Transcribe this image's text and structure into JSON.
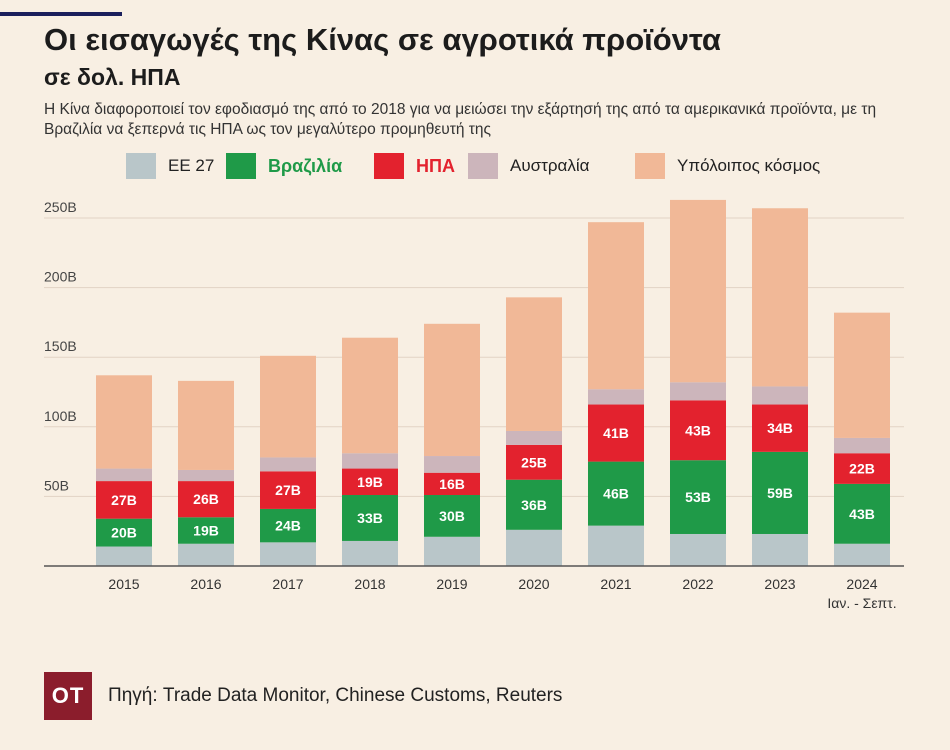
{
  "header": {
    "title": "Οι εισαγωγές της Κίνας σε αγροτικά προϊόντα",
    "subtitle": "σε δολ. ΗΠΑ",
    "description": "Η Κίνα διαφοροποιεί τον εφοδιασμό της από το 2018 για να μειώσει την εξάρτησή της από τα αμερικανικά προϊόντα, με τη Βραζιλία να ξεπερνά τις ΗΠΑ ως τον μεγαλύτερο προμηθευτή της"
  },
  "legend": {
    "items": [
      {
        "label": "ΕΕ 27",
        "color": "#b9c6c9",
        "label_color": "#222222",
        "bold": false
      },
      {
        "label": "Βραζιλία",
        "color": "#1f9a48",
        "label_color": "#1f9a48",
        "bold": true
      },
      {
        "label": "ΗΠΑ",
        "color": "#e3222e",
        "label_color": "#e3222e",
        "bold": true
      },
      {
        "label": "Αυστραλία",
        "color": "#ccb5bb",
        "label_color": "#222222",
        "bold": false
      },
      {
        "label": "Υπόλοιπος κόσμος",
        "color": "#f1b897",
        "label_color": "#222222",
        "bold": false
      }
    ]
  },
  "chart_data": {
    "type": "bar",
    "stacked": true,
    "categories": [
      "2015",
      "2016",
      "2017",
      "2018",
      "2019",
      "2020",
      "2021",
      "2022",
      "2023",
      "2024"
    ],
    "category_notes": {
      "2024": "Ιαν. - Σεπτ."
    },
    "y_ticks": [
      "50B",
      "100B",
      "150B",
      "200B",
      "250B"
    ],
    "ylim": [
      0,
      260
    ],
    "grid": true,
    "series": [
      {
        "name": "ΕΕ 27",
        "color": "#b9c6c9",
        "values": [
          14,
          16,
          17,
          18,
          21,
          26,
          29,
          23,
          23,
          16
        ],
        "labels": null
      },
      {
        "name": "Βραζιλία",
        "color": "#1f9a48",
        "values": [
          20,
          19,
          24,
          33,
          30,
          36,
          46,
          53,
          59,
          43
        ],
        "labels": [
          "20B",
          "19B",
          "24B",
          "33B",
          "30B",
          "36B",
          "46B",
          "53B",
          "59B",
          "43B"
        ]
      },
      {
        "name": "ΗΠΑ",
        "color": "#e3222e",
        "values": [
          27,
          26,
          27,
          19,
          16,
          25,
          41,
          43,
          34,
          22
        ],
        "labels": [
          "27B",
          "26B",
          "27B",
          "19B",
          "16B",
          "25B",
          "41B",
          "43B",
          "34B",
          "22B"
        ]
      },
      {
        "name": "Αυστραλία",
        "color": "#ccb5bb",
        "values": [
          9,
          8,
          10,
          11,
          12,
          10,
          11,
          13,
          13,
          11
        ],
        "labels": null
      },
      {
        "name": "Υπόλοιπος κόσμος",
        "color": "#f1b897",
        "values": [
          67,
          64,
          73,
          83,
          95,
          96,
          120,
          131,
          128,
          90
        ],
        "labels": null
      }
    ]
  },
  "footer": {
    "logo_text": "OT",
    "source": "Πηγή: Trade Data Monitor, Chinese Customs, Reuters"
  }
}
